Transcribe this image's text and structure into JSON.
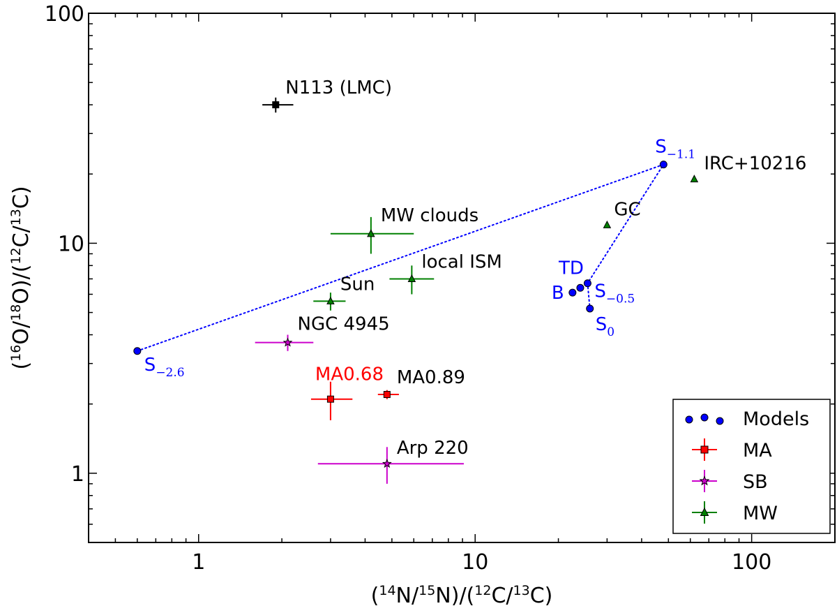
{
  "chart_data": {
    "type": "scatter",
    "xscale": "log",
    "yscale": "log",
    "xlim": [
      0.4,
      200
    ],
    "ylim": [
      0.5,
      100
    ],
    "xlabel": "(14N/15N)/(12C/13C)",
    "ylabel": "(16O/18O)/(12C/13C)",
    "x_ticks": [
      {
        "value": 1,
        "label": "1"
      },
      {
        "value": 10,
        "label": "10"
      },
      {
        "value": 100,
        "label": "100"
      }
    ],
    "y_ticks": [
      {
        "value": 1,
        "label": "1"
      },
      {
        "value": 10,
        "label": "10"
      },
      {
        "value": 100,
        "label": "100"
      }
    ],
    "series": [
      {
        "name": "Models",
        "color": "#0000ff",
        "marker": "circle",
        "points": [
          {
            "x": 0.6,
            "y": 3.4,
            "label": "S",
            "sub": "−2.6"
          },
          {
            "x": 48,
            "y": 22,
            "label": "S",
            "sub": "−1.1"
          },
          {
            "x": 22.5,
            "y": 6.1,
            "label": "B",
            "sub": ""
          },
          {
            "x": 24,
            "y": 6.4,
            "label": "TD",
            "sub": ""
          },
          {
            "x": 25.5,
            "y": 6.7,
            "label": "S",
            "sub": "−0.5"
          },
          {
            "x": 26,
            "y": 5.2,
            "label": "S",
            "sub": "0"
          }
        ]
      },
      {
        "name": "MA",
        "color": "#ff0000",
        "marker": "square",
        "points": [
          {
            "x": 3.0,
            "y": 2.1,
            "xerr": [
              0.45,
              0.6
            ],
            "yerr": [
              0.4,
              0.4
            ],
            "label": "MA0.68",
            "label_color": "#ff0000"
          },
          {
            "x": 4.8,
            "y": 2.2,
            "xerr": [
              0.35,
              0.5
            ],
            "yerr": [
              0.1,
              0.1
            ],
            "label": "MA0.89",
            "label_color": "#000000"
          }
        ]
      },
      {
        "name": "SB",
        "color": "#cc00cc",
        "marker": "star",
        "points": [
          {
            "x": 2.1,
            "y": 3.7,
            "xerr": [
              0.5,
              0.5
            ],
            "yerr": [
              0.3,
              0.3
            ],
            "label": "NGC 4945",
            "label_color": "#000000"
          },
          {
            "x": 4.8,
            "y": 1.1,
            "xerr": [
              2.1,
              4.3
            ],
            "yerr": [
              0.2,
              0.2
            ],
            "label": "Arp 220",
            "label_color": "#000000"
          }
        ]
      },
      {
        "name": "MW",
        "color": "#008000",
        "marker": "triangle",
        "points": [
          {
            "x": 4.2,
            "y": 11,
            "xerr": [
              1.2,
              1.8
            ],
            "yerr": [
              2.0,
              2.0
            ],
            "label": "MW clouds",
            "label_color": "#000000"
          },
          {
            "x": 5.9,
            "y": 7.0,
            "xerr": [
              1.0,
              1.2
            ],
            "yerr": [
              1.0,
              1.0
            ],
            "label": "local ISM",
            "label_color": "#000000"
          },
          {
            "x": 3.0,
            "y": 5.6,
            "xerr": [
              0.4,
              0.4
            ],
            "yerr": [
              0.5,
              0.5
            ],
            "label": "Sun",
            "label_color": "#000000"
          },
          {
            "x": 30,
            "y": 12,
            "label": "GC",
            "label_color": "#000000"
          },
          {
            "x": 62,
            "y": 19,
            "label": "IRC+10216",
            "label_color": "#000000"
          }
        ]
      },
      {
        "name": "",
        "color": "#000000",
        "marker": "square",
        "points": [
          {
            "x": 1.9,
            "y": 40,
            "xerr": [
              0.2,
              0.3
            ],
            "yerr": [
              3.0,
              3.0
            ],
            "label": "N113 (LMC)",
            "label_color": "#000000"
          }
        ]
      }
    ],
    "model_line": {
      "style": "dotted",
      "color": "#0000ff",
      "points": [
        {
          "x": 0.6,
          "y": 3.4
        },
        {
          "x": 48,
          "y": 22
        },
        {
          "x": 25.5,
          "y": 6.7
        },
        {
          "x": 26,
          "y": 5.2
        }
      ]
    },
    "legend": {
      "position": "bottom-right",
      "entries": [
        {
          "label": "Models",
          "marker": "circles",
          "color": "#0000ff"
        },
        {
          "label": "MA",
          "marker": "square",
          "color": "#ff0000"
        },
        {
          "label": "SB",
          "marker": "star",
          "color": "#cc00cc"
        },
        {
          "label": "MW",
          "marker": "triangle",
          "color": "#008000"
        }
      ]
    }
  }
}
